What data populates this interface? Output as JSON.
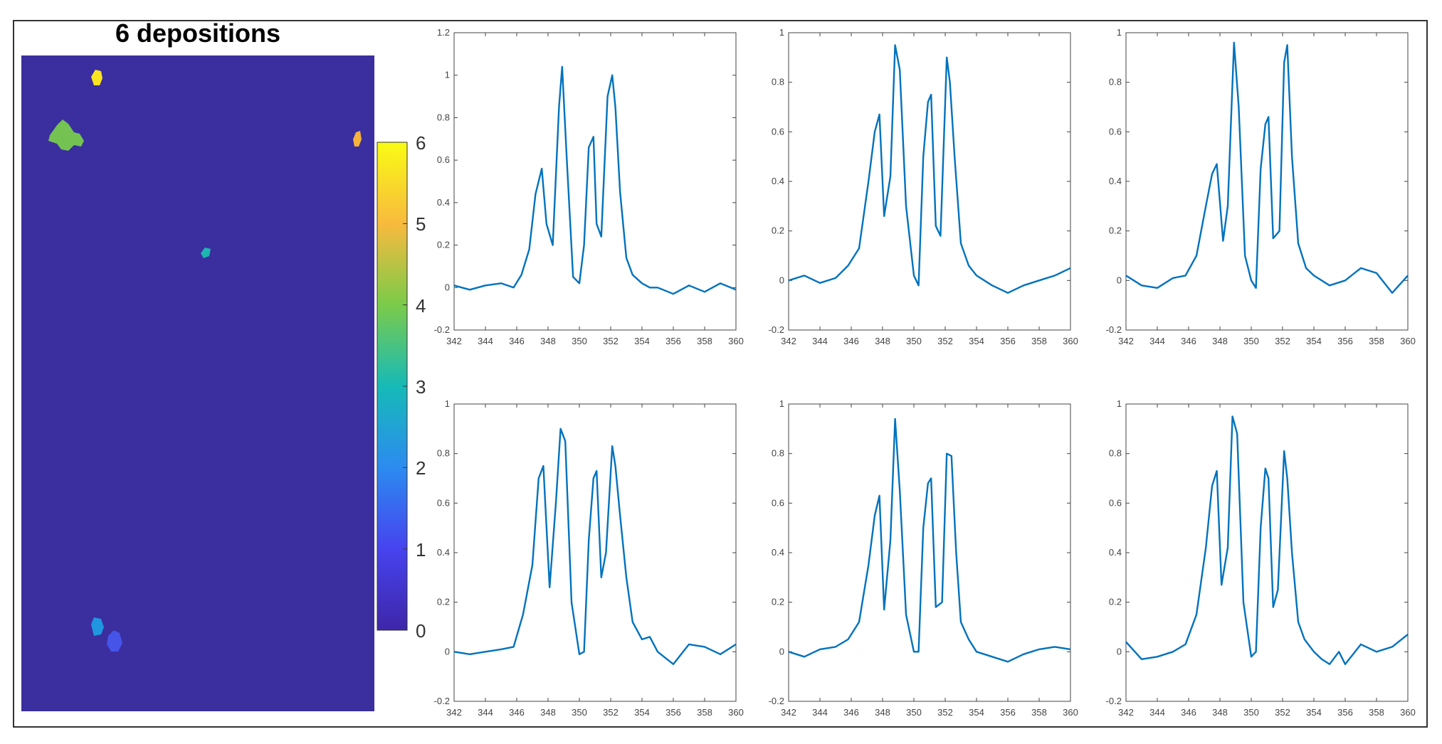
{
  "map": {
    "title": "6 depositions",
    "background_color": "#3B2E9E",
    "blobs": [
      {
        "label": 6,
        "color": "#F9E421"
      },
      {
        "label": 4,
        "color": "#74C352"
      },
      {
        "label": 5,
        "color": "#F5B23C"
      },
      {
        "label": 3,
        "color": "#1CB8B0"
      },
      {
        "label": 2,
        "color": "#2196E0"
      },
      {
        "label": 1,
        "color": "#4654E8"
      }
    ]
  },
  "colorbar": {
    "ticks": [
      "0",
      "1",
      "2",
      "3",
      "4",
      "5",
      "6"
    ],
    "min": 0,
    "max": 6,
    "stops": [
      "#3E26A8",
      "#4743EF",
      "#2C8BF0",
      "#16BAB7",
      "#7BCB4A",
      "#F8BA3E",
      "#F9FB15"
    ]
  },
  "chart_data": [
    {
      "type": "line",
      "series_color": "#0072BD",
      "xlim": [
        342,
        360
      ],
      "ylim": [
        -0.2,
        1.2
      ],
      "xticks": [
        "342",
        "344",
        "346",
        "348",
        "350",
        "352",
        "354",
        "356",
        "358",
        "360"
      ],
      "yticks": [
        "-0.2",
        "0",
        "0.2",
        "0.4",
        "0.6",
        "0.8",
        "1",
        "1.2"
      ],
      "x": [
        342,
        343,
        344,
        345,
        345.8,
        346.3,
        346.8,
        347.2,
        347.6,
        347.9,
        348.3,
        348.7,
        348.9,
        349.2,
        349.6,
        350,
        350.3,
        350.6,
        350.9,
        351.1,
        351.4,
        351.8,
        352.1,
        352.3,
        352.6,
        353,
        353.4,
        354,
        354.5,
        355,
        356,
        357,
        358,
        359,
        360
      ],
      "y": [
        0.01,
        -0.01,
        0.01,
        0.02,
        0.0,
        0.06,
        0.18,
        0.44,
        0.56,
        0.3,
        0.2,
        0.85,
        1.04,
        0.6,
        0.05,
        0.02,
        0.2,
        0.66,
        0.71,
        0.3,
        0.24,
        0.9,
        1.0,
        0.85,
        0.45,
        0.14,
        0.06,
        0.02,
        0.0,
        0.0,
        -0.03,
        0.01,
        -0.02,
        0.02,
        -0.01
      ]
    },
    {
      "type": "line",
      "series_color": "#0072BD",
      "xlim": [
        342,
        360
      ],
      "ylim": [
        -0.2,
        1
      ],
      "xticks": [
        "342",
        "344",
        "346",
        "348",
        "350",
        "352",
        "354",
        "356",
        "358",
        "360"
      ],
      "yticks": [
        "-0.2",
        "0",
        "0.2",
        "0.4",
        "0.6",
        "0.8",
        "1"
      ],
      "x": [
        342,
        343,
        344,
        345,
        345.8,
        346.5,
        347.1,
        347.5,
        347.8,
        348.1,
        348.5,
        348.8,
        349.1,
        349.5,
        350,
        350.3,
        350.6,
        350.9,
        351.1,
        351.4,
        351.7,
        352.1,
        352.3,
        352.6,
        353,
        353.5,
        354,
        355,
        356,
        357,
        358,
        359,
        360
      ],
      "y": [
        0.0,
        0.02,
        -0.01,
        0.01,
        0.06,
        0.13,
        0.4,
        0.6,
        0.67,
        0.26,
        0.42,
        0.95,
        0.85,
        0.3,
        0.02,
        -0.02,
        0.5,
        0.72,
        0.75,
        0.22,
        0.18,
        0.9,
        0.8,
        0.5,
        0.15,
        0.06,
        0.02,
        -0.02,
        -0.05,
        -0.02,
        0.0,
        0.02,
        0.05
      ]
    },
    {
      "type": "line",
      "series_color": "#0072BD",
      "xlim": [
        342,
        360
      ],
      "ylim": [
        -0.2,
        1
      ],
      "xticks": [
        "342",
        "344",
        "346",
        "348",
        "350",
        "352",
        "354",
        "356",
        "358",
        "360"
      ],
      "yticks": [
        "-0.2",
        "0",
        "0.2",
        "0.4",
        "0.6",
        "0.8",
        "1"
      ],
      "x": [
        342,
        343,
        344,
        345,
        345.8,
        346.5,
        347.1,
        347.5,
        347.8,
        348.2,
        348.5,
        348.9,
        349.2,
        349.6,
        350,
        350.3,
        350.6,
        350.9,
        351.1,
        351.4,
        351.8,
        352.1,
        352.3,
        352.6,
        353,
        353.5,
        354,
        355,
        356,
        357,
        358,
        359,
        360
      ],
      "y": [
        0.02,
        -0.02,
        -0.03,
        0.01,
        0.02,
        0.1,
        0.3,
        0.43,
        0.47,
        0.16,
        0.3,
        0.96,
        0.7,
        0.1,
        0.0,
        -0.03,
        0.45,
        0.63,
        0.66,
        0.17,
        0.2,
        0.88,
        0.95,
        0.5,
        0.15,
        0.05,
        0.02,
        -0.02,
        0.0,
        0.05,
        0.03,
        -0.05,
        0.02
      ]
    },
    {
      "type": "line",
      "series_color": "#0072BD",
      "xlim": [
        342,
        360
      ],
      "ylim": [
        -0.2,
        1
      ],
      "xticks": [
        "342",
        "344",
        "346",
        "348",
        "350",
        "352",
        "354",
        "356",
        "358",
        "360"
      ],
      "yticks": [
        "-0.2",
        "0",
        "0.2",
        "0.4",
        "0.6",
        "0.8",
        "1"
      ],
      "x": [
        342,
        343,
        344,
        345,
        345.8,
        346.4,
        347,
        347.4,
        347.7,
        348.1,
        348.5,
        348.8,
        349.1,
        349.5,
        350,
        350.3,
        350.6,
        350.9,
        351.1,
        351.4,
        351.7,
        352.1,
        352.3,
        352.6,
        353,
        353.4,
        354,
        354.5,
        355,
        355.6,
        356,
        357,
        358,
        359,
        360
      ],
      "y": [
        0.0,
        -0.01,
        0.0,
        0.01,
        0.02,
        0.15,
        0.35,
        0.7,
        0.75,
        0.26,
        0.6,
        0.9,
        0.85,
        0.2,
        -0.01,
        0.0,
        0.45,
        0.7,
        0.73,
        0.3,
        0.4,
        0.83,
        0.75,
        0.55,
        0.3,
        0.12,
        0.05,
        0.06,
        0.0,
        -0.03,
        -0.05,
        0.03,
        0.02,
        -0.01,
        0.03
      ]
    },
    {
      "type": "line",
      "series_color": "#0072BD",
      "xlim": [
        342,
        360
      ],
      "ylim": [
        -0.2,
        1
      ],
      "xticks": [
        "342",
        "344",
        "346",
        "348",
        "350",
        "352",
        "354",
        "356",
        "358",
        "360"
      ],
      "yticks": [
        "-0.2",
        "0",
        "0.2",
        "0.4",
        "0.6",
        "0.8",
        "1"
      ],
      "x": [
        342,
        343,
        344,
        345,
        345.8,
        346.5,
        347.1,
        347.5,
        347.8,
        348.1,
        348.5,
        348.8,
        349.1,
        349.5,
        350,
        350.3,
        350.6,
        350.9,
        351.1,
        351.4,
        351.8,
        352.1,
        352.4,
        352.7,
        353,
        353.5,
        354,
        355,
        356,
        357,
        358,
        359,
        360
      ],
      "y": [
        0.0,
        -0.02,
        0.01,
        0.02,
        0.05,
        0.12,
        0.35,
        0.55,
        0.63,
        0.17,
        0.45,
        0.94,
        0.65,
        0.15,
        0.0,
        0.0,
        0.5,
        0.68,
        0.7,
        0.18,
        0.2,
        0.8,
        0.79,
        0.4,
        0.12,
        0.05,
        0.0,
        -0.02,
        -0.04,
        -0.01,
        0.01,
        0.02,
        0.01
      ]
    },
    {
      "type": "line",
      "series_color": "#0072BD",
      "xlim": [
        342,
        360
      ],
      "ylim": [
        -0.2,
        1
      ],
      "xticks": [
        "342",
        "344",
        "346",
        "348",
        "350",
        "352",
        "354",
        "356",
        "358",
        "360"
      ],
      "yticks": [
        "-0.2",
        "0",
        "0.2",
        "0.4",
        "0.6",
        "0.8",
        "1"
      ],
      "x": [
        342,
        343,
        344,
        345,
        345.8,
        346.5,
        347.1,
        347.5,
        347.8,
        348.1,
        348.5,
        348.8,
        349.1,
        349.5,
        350,
        350.3,
        350.6,
        350.9,
        351.1,
        351.4,
        351.7,
        352.1,
        352.3,
        352.6,
        353,
        353.4,
        354,
        354.5,
        355,
        355.6,
        356,
        357,
        358,
        359,
        360
      ],
      "y": [
        0.04,
        -0.03,
        -0.02,
        0.0,
        0.03,
        0.15,
        0.42,
        0.67,
        0.73,
        0.27,
        0.42,
        0.95,
        0.88,
        0.2,
        -0.02,
        0.0,
        0.5,
        0.74,
        0.7,
        0.18,
        0.25,
        0.81,
        0.7,
        0.4,
        0.12,
        0.05,
        0.0,
        -0.03,
        -0.05,
        0.0,
        -0.05,
        0.03,
        0.0,
        0.02,
        0.07
      ]
    }
  ]
}
